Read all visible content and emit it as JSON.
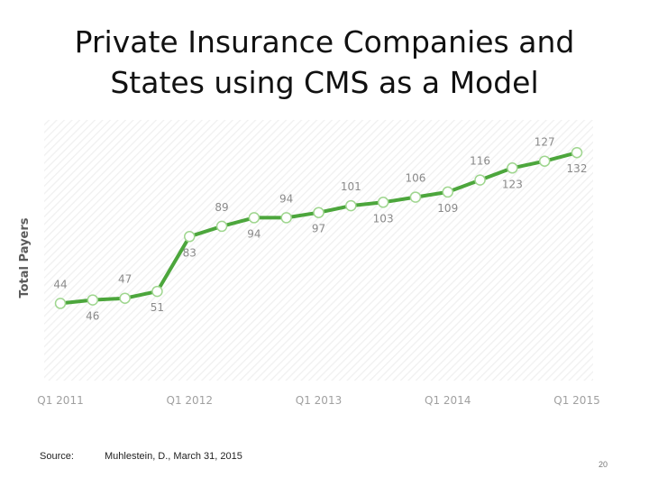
{
  "slide": {
    "title_line1": "Private Insurance Companies and",
    "title_line2": "States using CMS as a Model",
    "source_label": "Source:",
    "source_text": "Muhlestein, D., March 31, 2015",
    "page_number": "20"
  },
  "chart_data": {
    "type": "line",
    "title": "",
    "xlabel": "",
    "ylabel": "Total Payers",
    "ylim": [
      0,
      140
    ],
    "grid": false,
    "background": "diagonal-hatch",
    "line_color": "#4ca63c",
    "marker_fill": "#ffffff",
    "marker_stroke": "#9fd68f",
    "x_tick_labels": [
      "Q1 2011",
      "Q1 2012",
      "Q1 2013",
      "Q1 2014",
      "Q1 2015"
    ],
    "x": [
      "Q1 2011",
      "Q2 2011",
      "Q3 2011",
      "Q4 2011",
      "Q1 2012",
      "Q2 2012",
      "Q3 2012",
      "Q4 2012",
      "Q1 2013",
      "Q2 2013",
      "Q3 2013",
      "Q4 2013",
      "Q1 2014",
      "Q2 2014",
      "Q3 2014",
      "Q4 2014",
      "Q1 2015"
    ],
    "series": [
      {
        "values": [
          44,
          46,
          47,
          51,
          83,
          89,
          94,
          94,
          97,
          101,
          103,
          106,
          109,
          116,
          123,
          127,
          132
        ],
        "label_positions": [
          "above",
          "below",
          "above",
          "below",
          "below",
          "above",
          "below",
          "above",
          "below",
          "above",
          "below",
          "above",
          "below",
          "above",
          "below",
          "above",
          "below"
        ]
      }
    ]
  }
}
